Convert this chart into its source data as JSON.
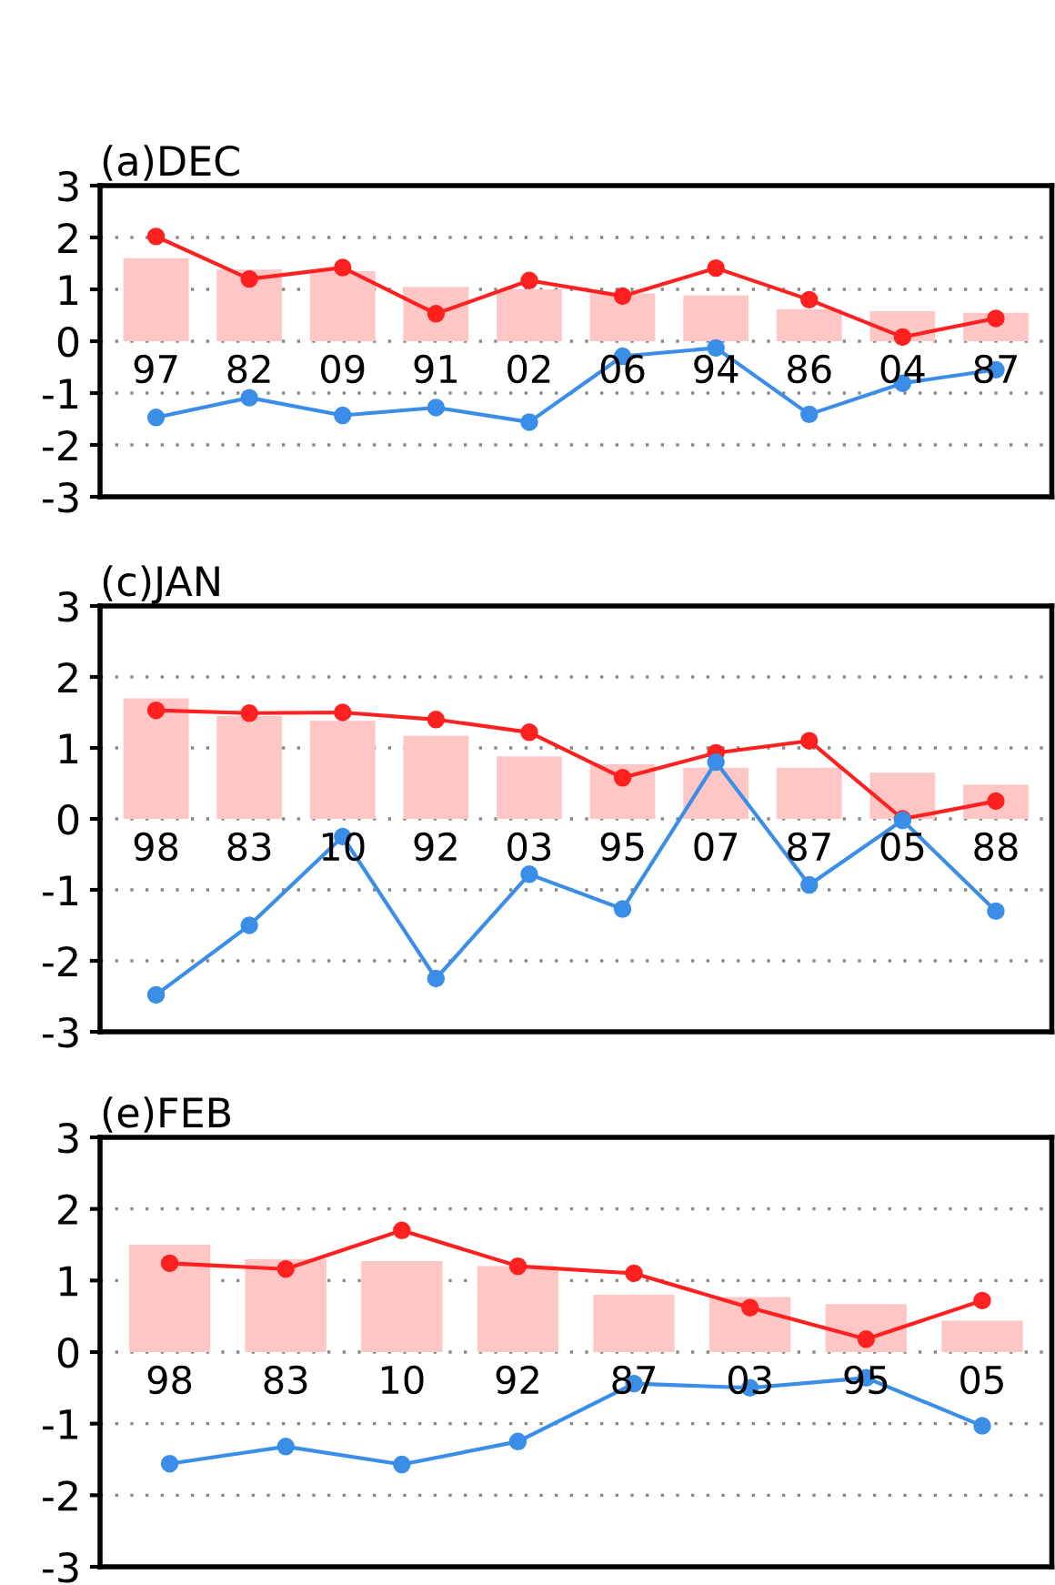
{
  "chart_data": [
    {
      "type": "bar",
      "title": "(a)DEC",
      "categories": [
        "97",
        "82",
        "09",
        "91",
        "02",
        "06",
        "94",
        "86",
        "04",
        "87"
      ],
      "ylim": [
        -3,
        3
      ],
      "yticks": [
        -3,
        -2,
        -1,
        0,
        1,
        2,
        3
      ],
      "grid": "y",
      "marker": "circle",
      "series": [
        {
          "color": "#ffc6c6",
          "values": [
            1.6,
            1.38,
            1.35,
            1.05,
            1.0,
            0.92,
            0.88,
            0.62,
            0.58,
            0.55
          ]
        },
        {
          "type": "line",
          "color": "#ff2020",
          "values": [
            2.02,
            1.2,
            1.42,
            0.53,
            1.17,
            0.87,
            1.41,
            0.8,
            0.08,
            0.44
          ]
        },
        {
          "type": "line",
          "color": "#3a8ee8",
          "values": [
            -1.47,
            -1.09,
            -1.43,
            -1.28,
            -1.56,
            -0.29,
            -0.13,
            -1.41,
            -0.81,
            -0.55
          ]
        }
      ]
    },
    {
      "type": "bar",
      "title": "(c)JAN",
      "categories": [
        "98",
        "83",
        "10",
        "92",
        "03",
        "95",
        "07",
        "87",
        "05",
        "88"
      ],
      "ylim": [
        -3,
        3
      ],
      "yticks": [
        -3,
        -2,
        -1,
        0,
        1,
        2,
        3
      ],
      "grid": "y",
      "marker": "circle",
      "series": [
        {
          "color": "#ffc6c6",
          "values": [
            1.7,
            1.45,
            1.38,
            1.17,
            0.88,
            0.77,
            0.72,
            0.72,
            0.65,
            0.48
          ]
        },
        {
          "type": "line",
          "color": "#ff2020",
          "values": [
            1.53,
            1.49,
            1.5,
            1.4,
            1.22,
            0.58,
            0.93,
            1.1,
            0.0,
            0.25
          ]
        },
        {
          "type": "line",
          "color": "#3a8ee8",
          "values": [
            -2.48,
            -1.5,
            -0.25,
            -2.25,
            -0.78,
            -1.27,
            0.8,
            -0.93,
            -0.02,
            -1.3
          ]
        }
      ]
    },
    {
      "type": "bar",
      "title": "(e)FEB",
      "categories": [
        "98",
        "83",
        "10",
        "92",
        "87",
        "03",
        "95",
        "05"
      ],
      "ylim": [
        -3,
        3
      ],
      "yticks": [
        -3,
        -2,
        -1,
        0,
        1,
        2,
        3
      ],
      "grid": "y",
      "marker": "circle",
      "series": [
        {
          "color": "#ffc6c6",
          "values": [
            1.5,
            1.3,
            1.27,
            1.2,
            0.8,
            0.77,
            0.67,
            0.44
          ]
        },
        {
          "type": "line",
          "color": "#ff2020",
          "values": [
            1.24,
            1.16,
            1.7,
            1.2,
            1.1,
            0.62,
            0.18,
            0.72
          ]
        },
        {
          "type": "line",
          "color": "#3a8ee8",
          "values": [
            -1.56,
            -1.32,
            -1.57,
            -1.25,
            -0.44,
            -0.5,
            -0.36,
            -1.03
          ]
        }
      ]
    }
  ]
}
